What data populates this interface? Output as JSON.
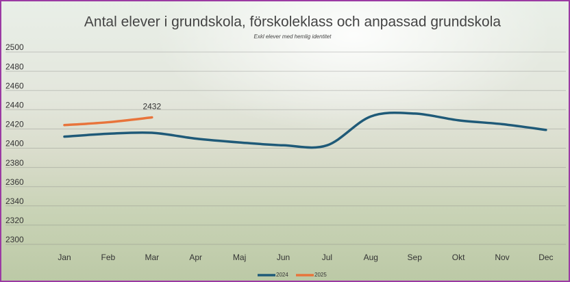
{
  "chart_data": {
    "type": "line",
    "title": "Antal elever i grundskola, förskoleklass och anpassad grundskola",
    "subtitle": "Exkl elever med hemlig identitet",
    "categories": [
      "Jan",
      "Feb",
      "Mar",
      "Apr",
      "Maj",
      "Jun",
      "Jul",
      "Aug",
      "Sep",
      "Okt",
      "Nov",
      "Dec"
    ],
    "series": [
      {
        "name": "2024",
        "color": "#1f5a78",
        "values": [
          2412,
          2415,
          2416,
          2410,
          2406,
          2403,
          2403,
          2433,
          2436,
          2429,
          2425,
          2419
        ]
      },
      {
        "name": "2025",
        "color": "#e8743b",
        "values": [
          2424,
          2427,
          2432,
          null,
          null,
          null,
          null,
          null,
          null,
          null,
          null,
          null
        ]
      }
    ],
    "ylim": [
      2300,
      2500
    ],
    "yticks": [
      2300,
      2320,
      2340,
      2360,
      2380,
      2400,
      2420,
      2440,
      2460,
      2480,
      2500
    ],
    "grid": true,
    "legend": "bottom"
  }
}
